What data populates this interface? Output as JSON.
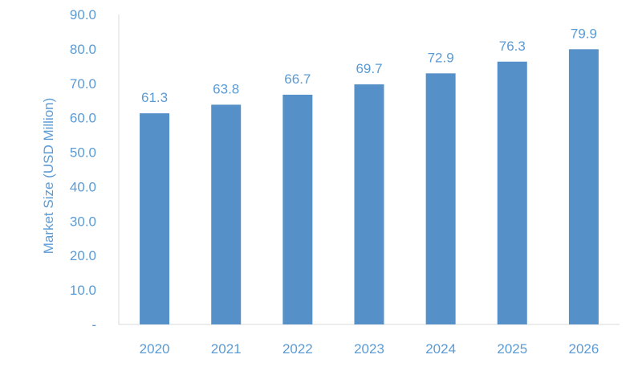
{
  "chart_data": {
    "type": "bar",
    "title": "",
    "xlabel": "",
    "ylabel": "Market Size (USD Million)",
    "categories": [
      "2020",
      "2021",
      "2022",
      "2023",
      "2024",
      "2025",
      "2026"
    ],
    "values": [
      61.3,
      63.8,
      66.7,
      69.7,
      72.9,
      76.3,
      79.9
    ],
    "data_labels": [
      "61.3",
      "63.8",
      "66.7",
      "69.7",
      "72.9",
      "76.3",
      "79.9"
    ],
    "ylim": [
      0,
      90
    ],
    "y_ticks": [
      0,
      10,
      20,
      30,
      40,
      50,
      60,
      70,
      80,
      90
    ],
    "y_tick_labels": [
      "-",
      "10.0",
      "20.0",
      "30.0",
      "40.0",
      "50.0",
      "60.0",
      "70.0",
      "80.0",
      "90.0"
    ],
    "grid": false,
    "legend": "none",
    "colors": {
      "bar": "#5591C8",
      "text": "#5B9BD5",
      "axis": "#D9D9D9"
    }
  }
}
